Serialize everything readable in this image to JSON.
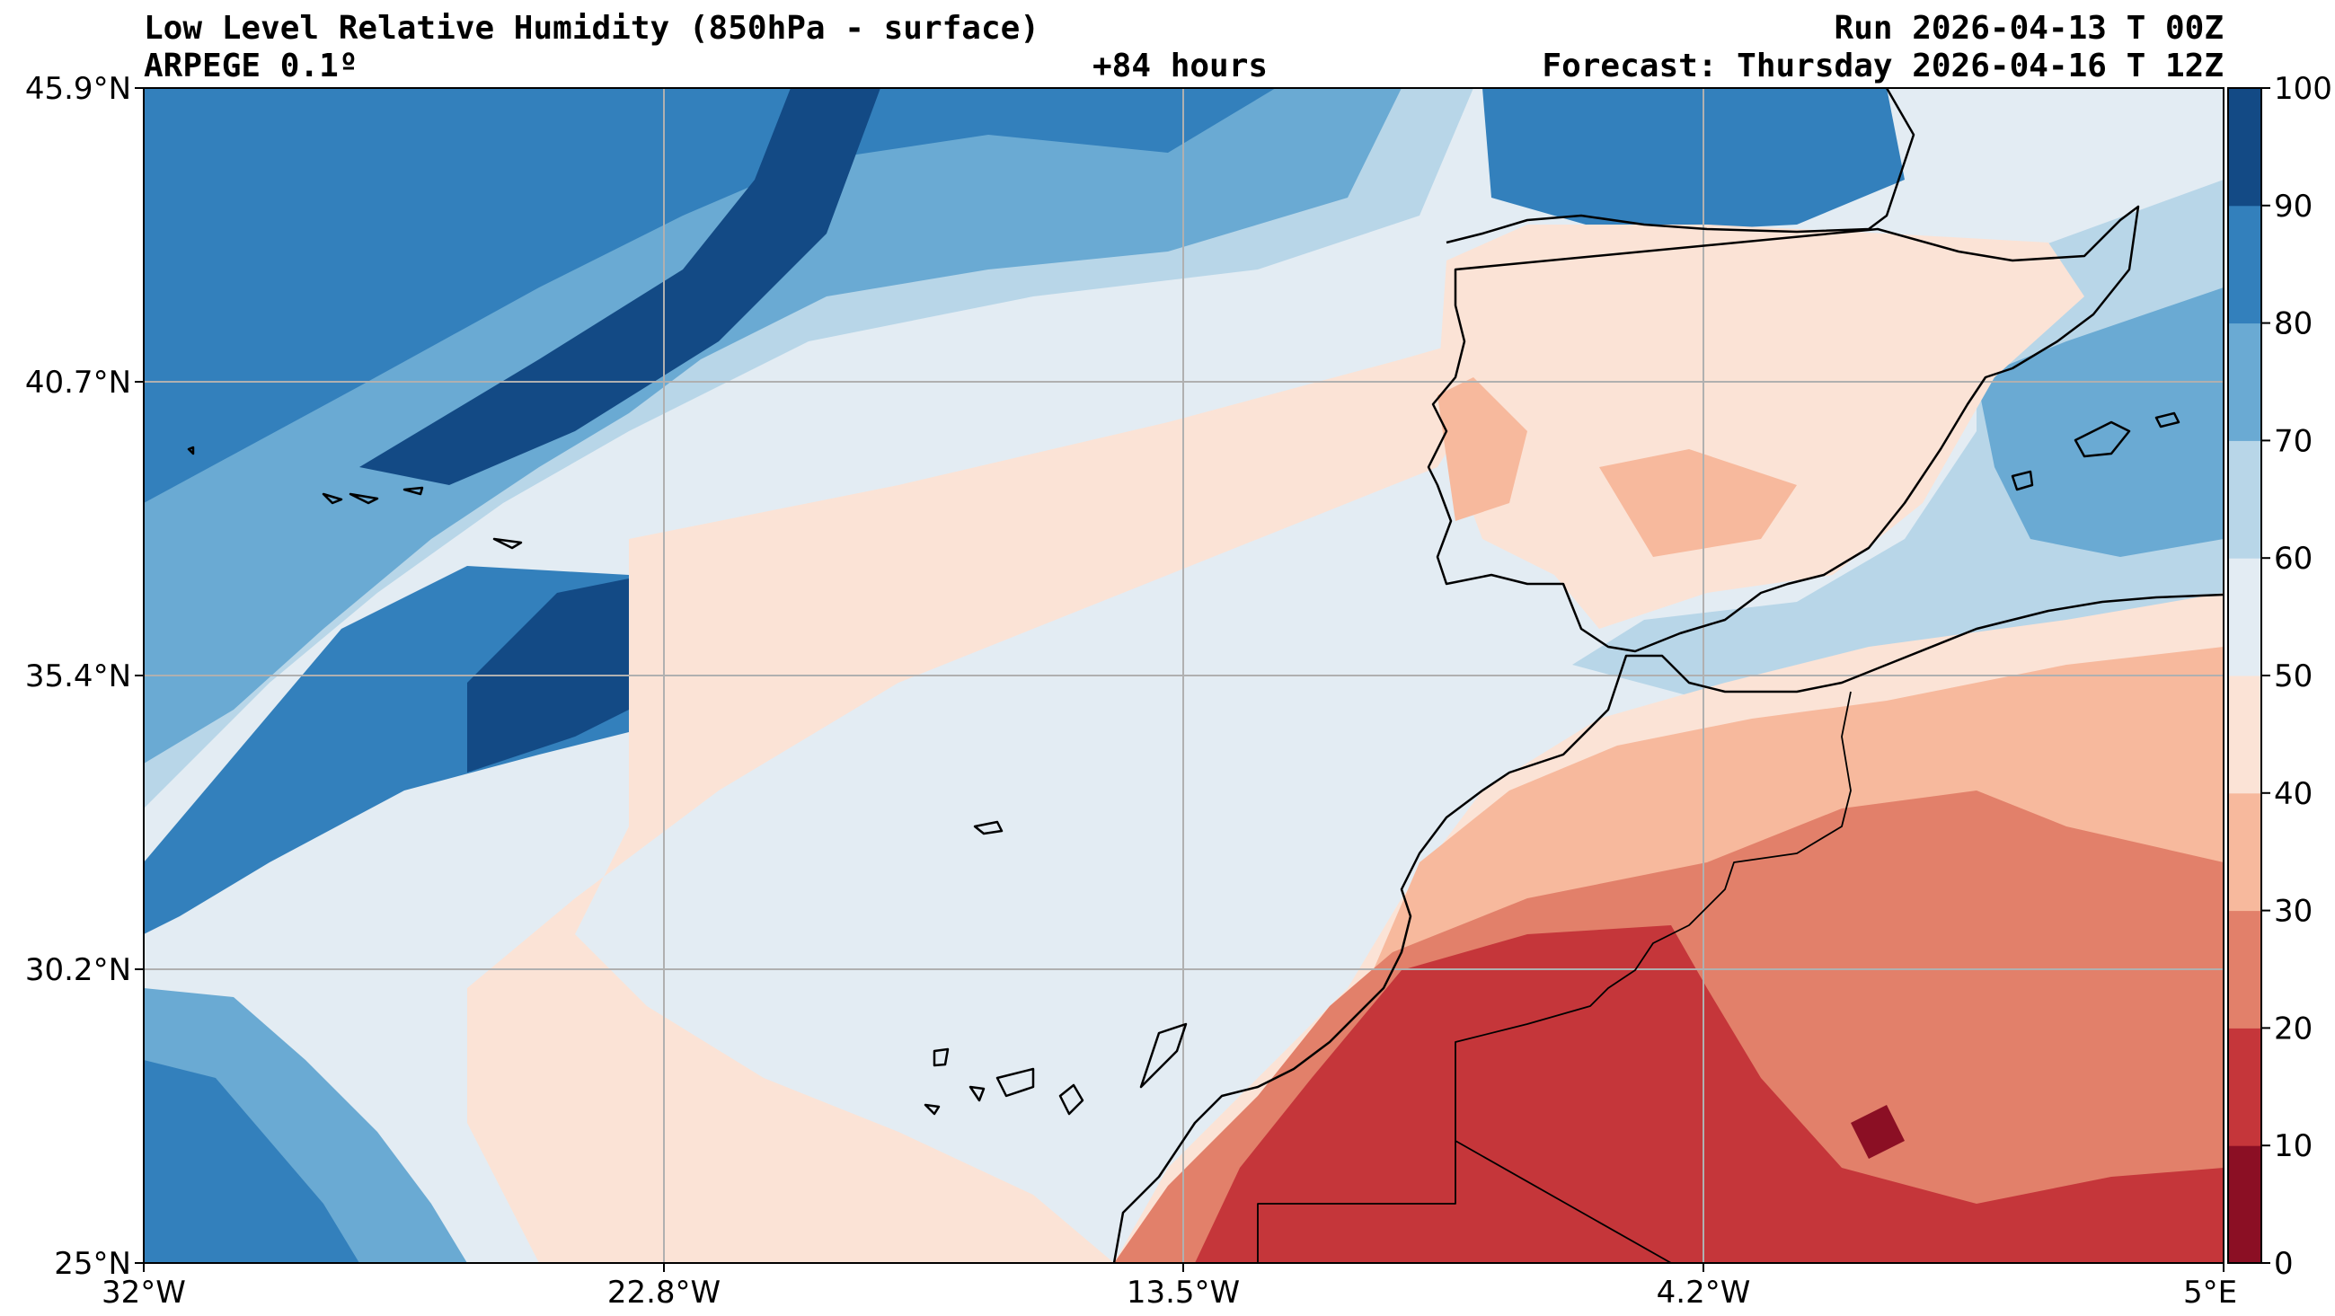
{
  "header": {
    "title": "Low Level Relative Humidity (850hPa - surface)",
    "model": "ARPEGE 0.1º",
    "lead_time": "+84 hours",
    "run": "Run 2026-04-13 T 00Z",
    "forecast": "Forecast: Thursday 2026-04-16 T 12Z"
  },
  "map": {
    "lon_range": [
      -32,
      5
    ],
    "lat_range": [
      25,
      45.9
    ],
    "lon_ticks": [
      "32°W",
      "22.8°W",
      "13.5°W",
      "4.2°W",
      "5°E"
    ],
    "lat_ticks": [
      "45.9°N",
      "40.7°N",
      "35.4°N",
      "30.2°N",
      "25°N"
    ],
    "grid": true
  },
  "colorbar": {
    "ticks": [
      "0",
      "10",
      "20",
      "30",
      "40",
      "50",
      "60",
      "70",
      "80",
      "90",
      "100"
    ],
    "colors": [
      "#8b0f24",
      "#c5363a",
      "#e2806a",
      "#f7b99d",
      "#fbe3d6",
      "#e3ecf3",
      "#b8d6e8",
      "#6aaad3",
      "#3380bc",
      "#134a85"
    ]
  }
}
